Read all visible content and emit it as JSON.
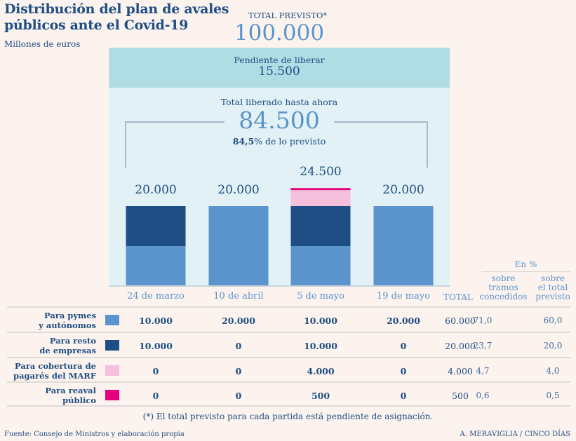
{
  "header": {
    "title_line1": "Distribución del plan de avales",
    "title_line2": "públicos ante el Covid-19",
    "subtitle": "Millones de euros",
    "total_label": "TOTAL PREVISTO*",
    "total_value": "100.000"
  },
  "summary": {
    "pending_label": "Pendiente de liberar",
    "pending_value": "15.500",
    "released_label": "Total liberado hasta ahora",
    "released_value": "84.500",
    "released_pct_bold": "84,5",
    "released_pct_rest": "% de lo previsto"
  },
  "colors": {
    "pymes": "#5b93cc",
    "resto": "#1f4e84",
    "marf": "#f5c0db",
    "reaval": "#e6007e",
    "pending_band": "#b0dce3",
    "released_band": "#e2f1f5",
    "background": "#fcf3ee"
  },
  "chart_data": {
    "type": "bar",
    "stacked": true,
    "title": "Distribución del plan de avales públicos ante el Covid-19",
    "ylabel": "Millones de euros",
    "categories": [
      "24 de marzo",
      "10 de abril",
      "5 de mayo",
      "19 de mayo"
    ],
    "series": [
      {
        "name": "Para pymes y autónomos",
        "color": "#5b93cc",
        "values": [
          10000,
          20000,
          10000,
          20000
        ]
      },
      {
        "name": "Para resto de empresas",
        "color": "#1f4e84",
        "values": [
          10000,
          0,
          10000,
          0
        ]
      },
      {
        "name": "Para cobertura de pagarés del MARF",
        "color": "#f5c0db",
        "values": [
          0,
          0,
          4000,
          0
        ]
      },
      {
        "name": "Para reaval público",
        "color": "#e6007e",
        "values": [
          0,
          0,
          500,
          0
        ]
      }
    ],
    "totals": [
      "20.000",
      "20.000",
      "24.500",
      "20.000"
    ],
    "ylim": [
      0,
      25000
    ],
    "grid": false,
    "legend": "table-below"
  },
  "table": {
    "total_header": "TOTAL",
    "pct_group_header": "En %",
    "pct_headers": [
      [
        "sobre",
        "tramos",
        "concedidos"
      ],
      [
        "sobre",
        "el total",
        "previsto"
      ]
    ],
    "rows": [
      {
        "label1": "Para pymes",
        "label2": "y autónomos",
        "values": [
          "10.000",
          "20.000",
          "10.000",
          "20.000"
        ],
        "total": "60.000",
        "pct_tramos": "71,0",
        "pct_previsto": "60,0"
      },
      {
        "label1": "Para resto",
        "label2": "de empresas",
        "values": [
          "10.000",
          "0",
          "10.000",
          "0"
        ],
        "total": "20.000",
        "pct_tramos": "23,7",
        "pct_previsto": "20,0"
      },
      {
        "label1": "Para cobertura de",
        "label2": "pagarés del MARF",
        "values": [
          "0",
          "0",
          "4.000",
          "0"
        ],
        "total": "4.000",
        "pct_tramos": "4,7",
        "pct_previsto": "4,0"
      },
      {
        "label1": "Para reaval",
        "label2": "público",
        "values": [
          "0",
          "0",
          "500",
          "0"
        ],
        "total": "500",
        "pct_tramos": "0,6",
        "pct_previsto": "0,5"
      }
    ]
  },
  "footer": {
    "footnote": "(*) El total previsto para cada partida está pendiente de asignación.",
    "source": "Fuente: Consejo de Ministros y elaboración propia",
    "credit": "A. MERAVIGLIA / CINCO DÍAS"
  }
}
